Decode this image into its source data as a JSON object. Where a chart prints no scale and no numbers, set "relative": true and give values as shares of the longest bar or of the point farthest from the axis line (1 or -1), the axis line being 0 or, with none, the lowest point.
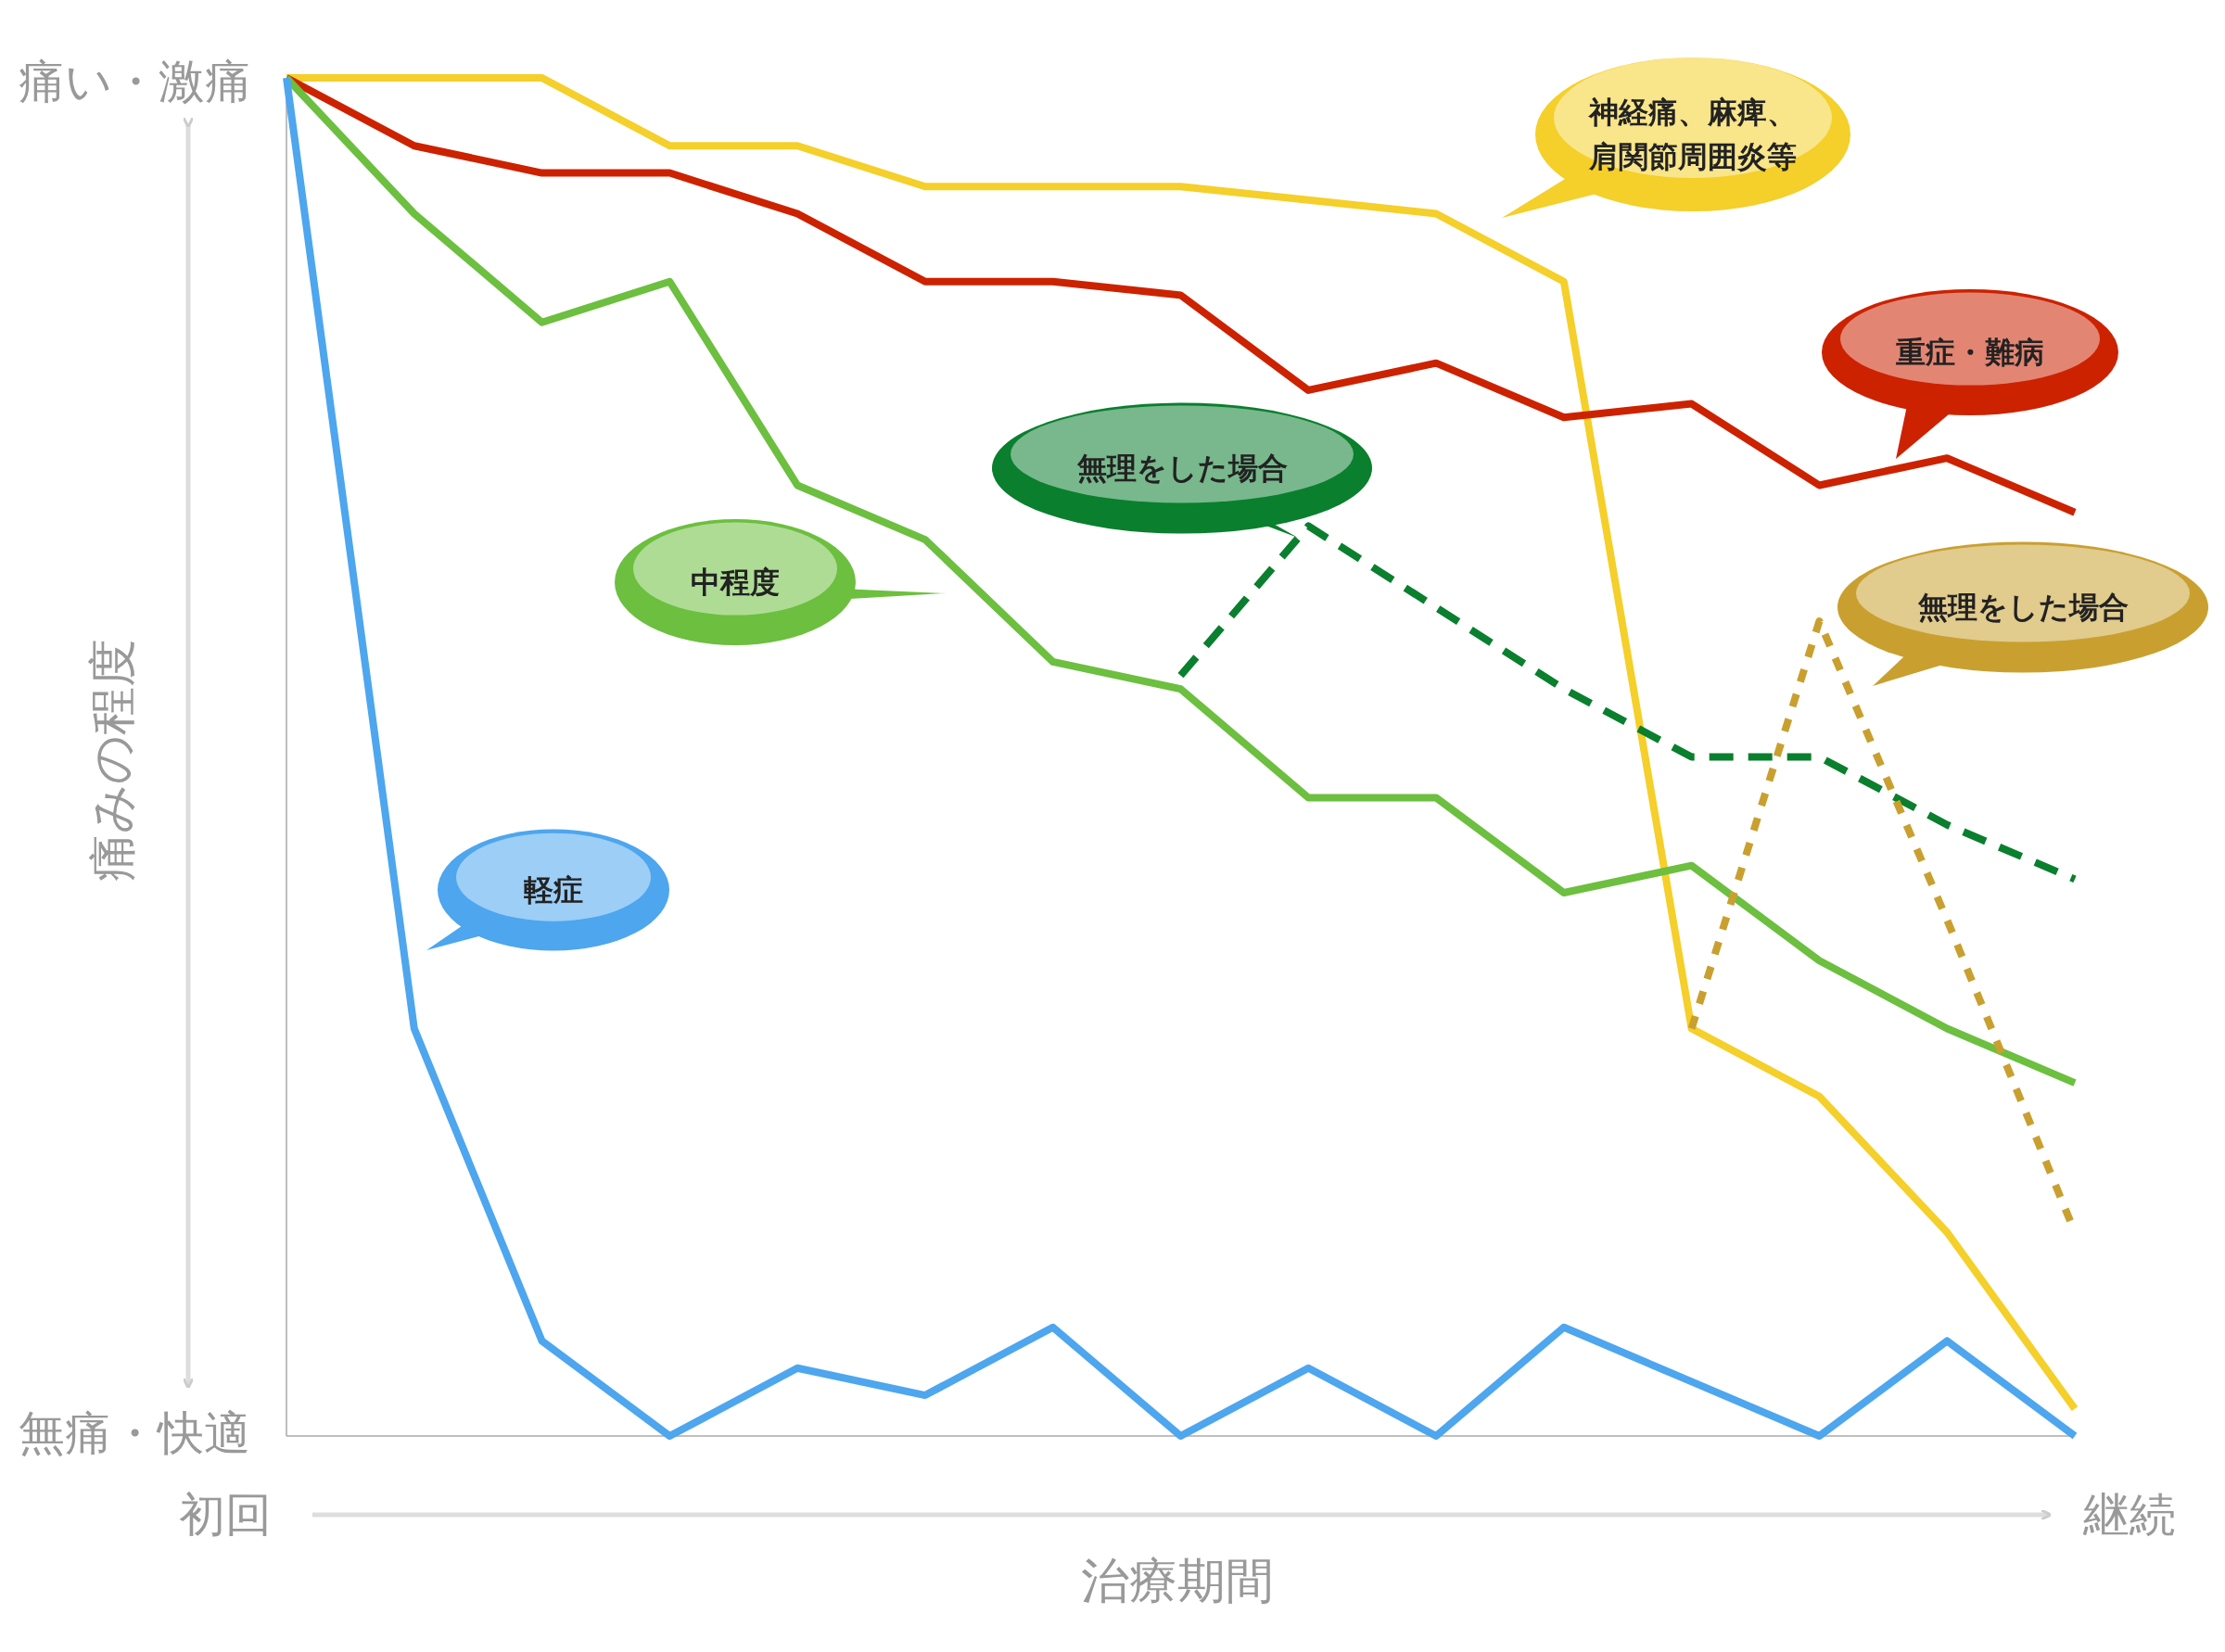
{
  "chart_data": {
    "type": "line",
    "relative": true,
    "xlabel": "治療期間",
    "ylabel": "痛みの程度",
    "categories": [
      null,
      null,
      null,
      null,
      null,
      null,
      null,
      null,
      null,
      null,
      null,
      null,
      null,
      null,
      null
    ],
    "annotations": [
      "痛い・激痛",
      "無痛・快適",
      "初回",
      "継続"
    ],
    "series": [
      {
        "name": "神経痛、麻痺、肩関節周囲炎等",
        "color": "#f5cf2a",
        "values": [
          1,
          1,
          1,
          0.95,
          0.95,
          0.92,
          0.92,
          0.92,
          0.91,
          0.9,
          0.85,
          0.3,
          0.25,
          0.15,
          0.02
        ]
      },
      {
        "name": "重症・難病",
        "color": "#cc2200",
        "values": [
          1,
          0.95,
          0.93,
          0.93,
          0.9,
          0.85,
          0.85,
          0.84,
          0.77,
          0.79,
          0.75,
          0.76,
          0.7,
          0.72,
          0.68
        ]
      },
      {
        "name": "中程度",
        "color": "#6cbf3f",
        "values": [
          1,
          0.9,
          0.82,
          0.85,
          0.7,
          0.66,
          0.57,
          0.55,
          0.47,
          0.47,
          0.4,
          0.42,
          0.35,
          0.3,
          0.26
        ]
      },
      {
        "name": "軽症",
        "color": "#4da6ee",
        "values": [
          1,
          0.3,
          0.07,
          0,
          0.05,
          0.03,
          0.08,
          0,
          0.05,
          0,
          0.08,
          0.04,
          0,
          0.07,
          0
        ]
      },
      {
        "name": "無理をした場合",
        "color": "#0a7f2e",
        "line_style": "dashed",
        "values": [
          null,
          null,
          null,
          null,
          null,
          null,
          null,
          0.56,
          0.67,
          0.61,
          0.55,
          0.5,
          0.5,
          0.45,
          0.41
        ]
      },
      {
        "name": "無理をした場合",
        "color": "#c9a030",
        "line_style": "dotted",
        "values": [
          null,
          null,
          null,
          null,
          null,
          null,
          null,
          null,
          null,
          null,
          null,
          0.3,
          0.6,
          0.38,
          0.15
        ]
      }
    ]
  }
}
